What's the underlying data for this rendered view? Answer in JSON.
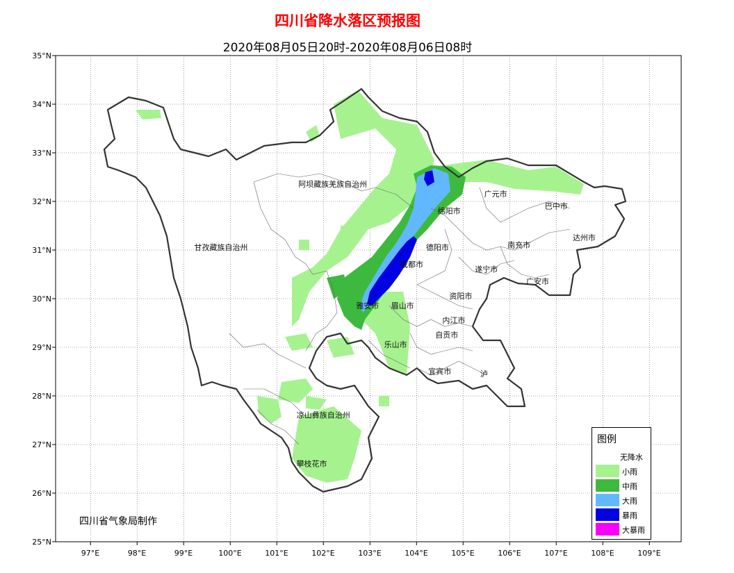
{
  "title": "四川省降水落区预报图",
  "subtitle": "2020年08月05日20时-2020年08月06日08时",
  "credit": "四川省气象局制作",
  "lat_labels": [
    "35°N",
    "34°N",
    "33°N",
    "32°N",
    "31°N",
    "30°N",
    "29°N",
    "28°N",
    "27°N",
    "26°N",
    "25°N"
  ],
  "lon_labels": [
    "97°E",
    "98°E",
    "99°E",
    "100°E",
    "101°E",
    "102°E",
    "103°E",
    "104°E",
    "105°E",
    "106°E",
    "107°E",
    "108°E",
    "109°E"
  ],
  "cities": [
    {
      "name": "阿坝藏族羌族自治州",
      "lon": 102.2,
      "lat": 32.3
    },
    {
      "name": "甘孜藏族自治州",
      "lon": 99.8,
      "lat": 31.0
    },
    {
      "name": "广元市",
      "lon": 105.7,
      "lat": 32.1
    },
    {
      "name": "巴中市",
      "lon": 107.0,
      "lat": 31.85
    },
    {
      "name": "绵阳市",
      "lon": 104.7,
      "lat": 31.75
    },
    {
      "name": "达州市",
      "lon": 107.6,
      "lat": 31.2
    },
    {
      "name": "德阳市",
      "lon": 104.45,
      "lat": 31.0
    },
    {
      "name": "南充市",
      "lon": 106.2,
      "lat": 31.05
    },
    {
      "name": "成都市",
      "lon": 103.9,
      "lat": 30.65
    },
    {
      "name": "遂宁市",
      "lon": 105.5,
      "lat": 30.55
    },
    {
      "name": "广安市",
      "lon": 106.6,
      "lat": 30.3
    },
    {
      "name": "资阳市",
      "lon": 104.95,
      "lat": 30.0
    },
    {
      "name": "雅安市",
      "lon": 102.95,
      "lat": 29.8
    },
    {
      "name": "眉山市",
      "lon": 103.7,
      "lat": 29.8
    },
    {
      "name": "内江市",
      "lon": 104.8,
      "lat": 29.5
    },
    {
      "name": "自贡市",
      "lon": 104.65,
      "lat": 29.2
    },
    {
      "name": "乐山市",
      "lon": 103.55,
      "lat": 29.0
    },
    {
      "name": "宜宾市",
      "lon": 104.5,
      "lat": 28.45
    },
    {
      "name": "泸",
      "lon": 105.45,
      "lat": 28.4
    },
    {
      "name": "凉山彝族自治州",
      "lon": 102.0,
      "lat": 27.55
    },
    {
      "name": "攀枝花市",
      "lon": 101.75,
      "lat": 26.55
    }
  ],
  "legend": {
    "title": "图例",
    "items": [
      {
        "label": "无降水",
        "color": "#ffffff"
      },
      {
        "label": "小雨",
        "color": "#a6f28f"
      },
      {
        "label": "中雨",
        "color": "#3dba3d"
      },
      {
        "label": "大雨",
        "color": "#61b8ff"
      },
      {
        "label": "暴雨",
        "color": "#0000e1"
      },
      {
        "label": "大暴雨",
        "color": "#fa00fa"
      }
    ]
  }
}
